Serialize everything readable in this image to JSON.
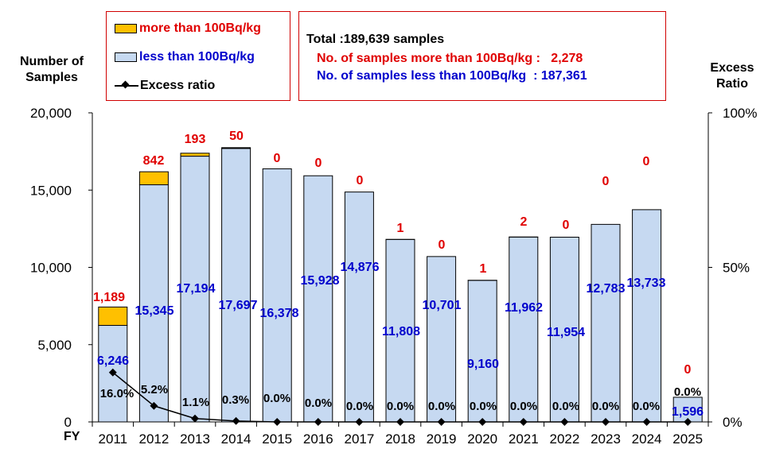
{
  "legend": {
    "more_label": "more than 100Bq/kg",
    "less_label": "less than 100Bq/kg",
    "ratio_label": "Excess ratio"
  },
  "info": {
    "total": "Total :189,639 samples",
    "more": "No. of samples more than 100Bq/kg :   2,278",
    "less": "No. of samples less than 100Bq/kg  : 187,361"
  },
  "axes": {
    "left_title_line1": "Number of",
    "left_title_line2": "Samples",
    "right_title_line1": "Excess",
    "right_title_line2": "Ratio",
    "x_title": "FY"
  },
  "colors": {
    "more": "#FFC000",
    "less": "#C6D9F1",
    "more_text": "#E00000",
    "less_text": "#0000CC",
    "ratio_text": "#000000"
  },
  "chart_data": {
    "type": "bar",
    "stacked": true,
    "categories": [
      "2011",
      "2012",
      "2013",
      "2014",
      "2015",
      "2016",
      "2017",
      "2018",
      "2019",
      "2020",
      "2021",
      "2022",
      "2023",
      "2024",
      "2025"
    ],
    "series": [
      {
        "name": "less than 100Bq/kg",
        "values": [
          6246,
          15345,
          17194,
          17697,
          16378,
          15928,
          14876,
          11808,
          10701,
          9160,
          11962,
          11954,
          12783,
          13733,
          1596
        ],
        "labels": [
          "6,246",
          "15,345",
          "17,194",
          "17,697",
          "16,378",
          "15,928",
          "14,876",
          "11,808",
          "10,701",
          "9,160",
          "11,962",
          "11,954",
          "12,783",
          "13,733",
          "1,596"
        ]
      },
      {
        "name": "more than 100Bq/kg",
        "values": [
          1189,
          842,
          193,
          50,
          0,
          0,
          0,
          1,
          0,
          1,
          2,
          0,
          0,
          0,
          0
        ],
        "labels": [
          "1,189",
          "842",
          "193",
          "50",
          "0",
          "0",
          "0",
          "1",
          "0",
          "1",
          "2",
          "0",
          "0",
          "0",
          "0"
        ]
      }
    ],
    "excess_ratio": {
      "name": "Excess ratio",
      "values": [
        16.0,
        5.2,
        1.1,
        0.3,
        0.0,
        0.0,
        0.0,
        0.0,
        0.0,
        0.0,
        0.0,
        0.0,
        0.0,
        0.0,
        0.0
      ],
      "labels": [
        "16.0%",
        "5.2%",
        "1.1%",
        "0.3%",
        "0.0%",
        "0.0%",
        "0.0%",
        "0.0%",
        "0.0%",
        "0.0%",
        "0.0%",
        "0.0%",
        "0.0%",
        "0.0%",
        "0.0%"
      ]
    },
    "y_left": {
      "min": 0,
      "max": 20000,
      "ticks": [
        0,
        5000,
        10000,
        15000,
        20000
      ],
      "tick_labels": [
        "0",
        "5,000",
        "10,000",
        "15,000",
        "20,000"
      ]
    },
    "y_right": {
      "min": 0,
      "max": 100,
      "ticks": [
        0,
        50,
        100
      ],
      "tick_labels": [
        "0%",
        "50%",
        "100%"
      ]
    },
    "grid": false,
    "legend_position": "top-left"
  }
}
